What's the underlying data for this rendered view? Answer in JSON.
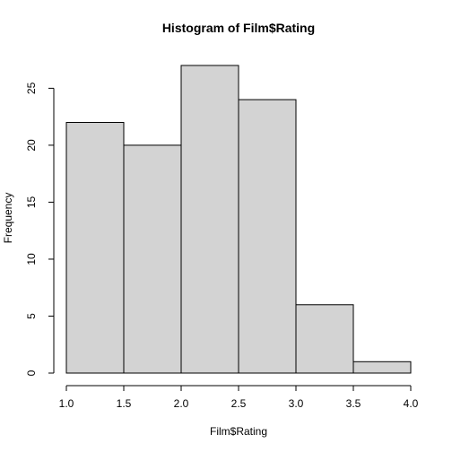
{
  "chart_data": {
    "type": "bar",
    "title": "Histogram of Film$Rating",
    "xlabel": "Film$Rating",
    "ylabel": "Frequency",
    "bins": [
      {
        "from": 1.0,
        "to": 1.5,
        "count": 22
      },
      {
        "from": 1.5,
        "to": 2.0,
        "count": 20
      },
      {
        "from": 2.0,
        "to": 2.5,
        "count": 27
      },
      {
        "from": 2.5,
        "to": 3.0,
        "count": 24
      },
      {
        "from": 3.0,
        "to": 3.5,
        "count": 6
      },
      {
        "from": 3.5,
        "to": 4.0,
        "count": 1
      }
    ],
    "xlim": [
      1.0,
      4.0
    ],
    "ylim": [
      0,
      27
    ],
    "xticks": [
      "1.0",
      "1.5",
      "2.0",
      "2.5",
      "3.0",
      "3.5",
      "4.0"
    ],
    "yticks": [
      "0",
      "5",
      "10",
      "15",
      "20",
      "25"
    ],
    "grid": false,
    "colors": {
      "bar_fill": "#d3d3d3",
      "bar_stroke": "#000000"
    }
  }
}
